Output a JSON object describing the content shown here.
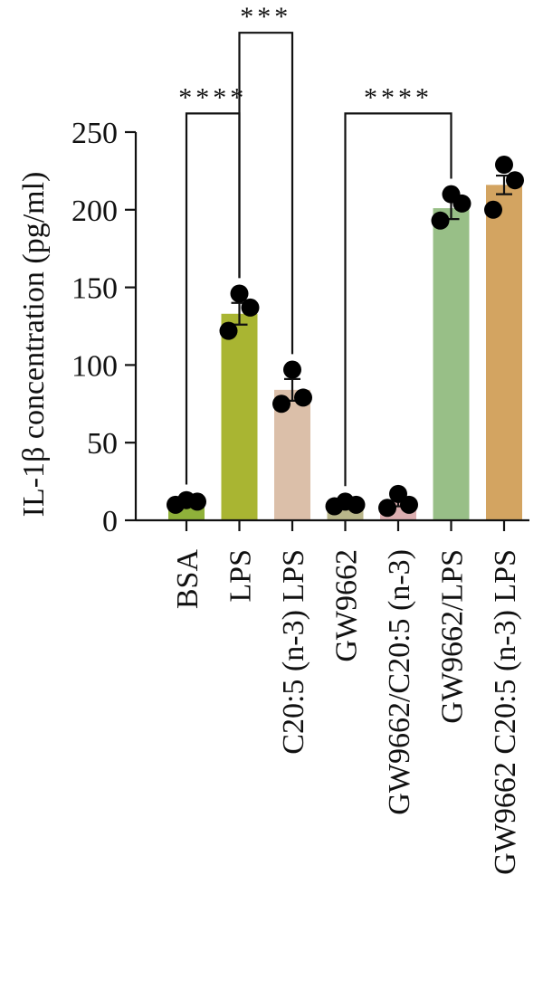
{
  "chart_data": {
    "type": "bar",
    "ylabel": "IL-1β concentration (pg/ml)",
    "ylim": [
      0,
      250
    ],
    "yticks": [
      0,
      50,
      100,
      150,
      200,
      250
    ],
    "categories": [
      "BSA",
      "LPS",
      "C20:5 (n-3) LPS",
      "GW9662",
      "GW9662/C20:5 (n-3)",
      "GW9662/LPS",
      "GW9662 C20:5 (n-3) LPS"
    ],
    "values": [
      11,
      133,
      84,
      10,
      12,
      201,
      216
    ],
    "errors": [
      1.5,
      7,
      7,
      1.5,
      3,
      7,
      6
    ],
    "points": [
      [
        10,
        12,
        13
      ],
      [
        122,
        137,
        146
      ],
      [
        75,
        79,
        97
      ],
      [
        9,
        10,
        12
      ],
      [
        8,
        10,
        17
      ],
      [
        193,
        204,
        210
      ],
      [
        200,
        219,
        229
      ]
    ],
    "colors": [
      "#8fb13a",
      "#a9b532",
      "#dbbfa9",
      "#b9b68a",
      "#dcaeb0",
      "#98bf87",
      "#d3a461"
    ],
    "significance": [
      {
        "from": 0,
        "to": 1,
        "label": "****",
        "y": 262
      },
      {
        "from": 1,
        "to": 2,
        "label": "***",
        "y": 314
      },
      {
        "from": 3,
        "to": 5,
        "label": "****",
        "y": 262
      }
    ],
    "grid": false,
    "legend": "none"
  }
}
